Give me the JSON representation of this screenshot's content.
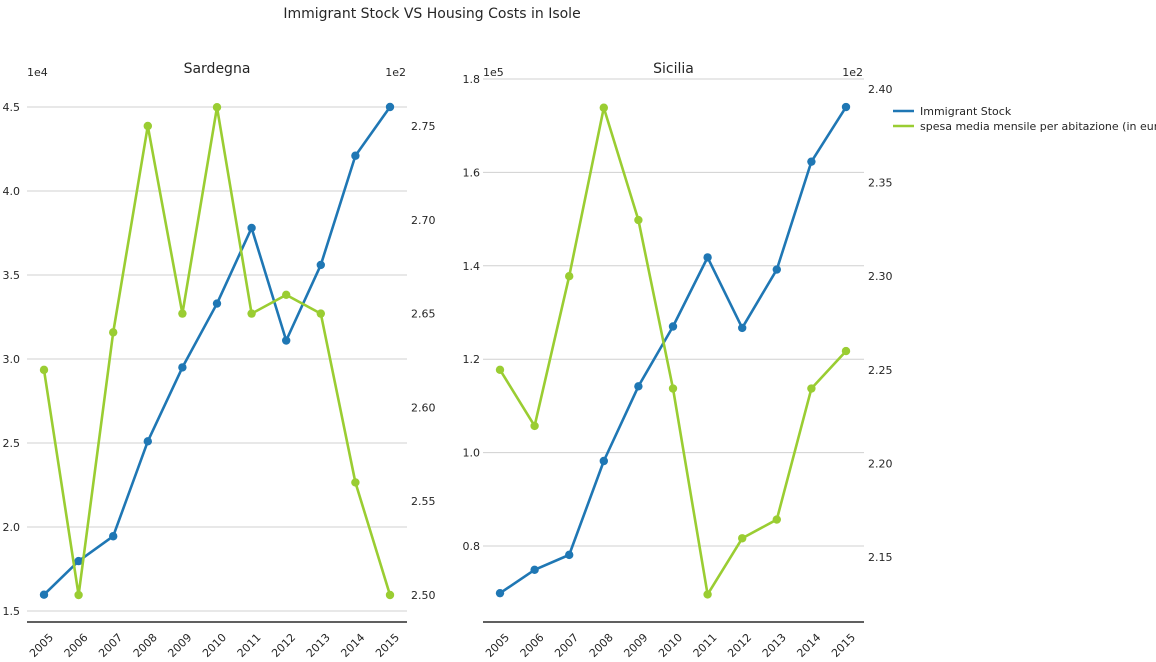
{
  "suptitle": "Immigrant Stock VS Housing Costs in Isole",
  "colors": {
    "immigrant": "#1f77b4",
    "spesa": "#9acd32",
    "grid": "#d0d0d0",
    "axis": "#000000"
  },
  "legend": {
    "placement": "upper-right, outside",
    "entries": [
      "Immigrant Stock",
      "spesa media mensile per abitazione (in euro)"
    ]
  },
  "chart_data": [
    {
      "type": "line",
      "title": "Sardegna",
      "categories": [
        "2005",
        "2006",
        "2007",
        "2008",
        "2009",
        "2010",
        "2011",
        "2012",
        "2013",
        "2014",
        "2015"
      ],
      "series": [
        {
          "name": "Immigrant Stock",
          "axis": "left",
          "values": [
            15970,
            17970,
            19450,
            25100,
            29500,
            33300,
            37800,
            31100,
            35600,
            42100,
            45000
          ]
        },
        {
          "name": "spesa media mensile per abitazione (in euro)",
          "axis": "right",
          "values": [
            262,
            250,
            264,
            275,
            265,
            276,
            265,
            266,
            265,
            256,
            250
          ]
        }
      ],
      "left_axis": {
        "ylim": [
          14400,
          46400
        ],
        "ticks": [
          15000,
          20000,
          25000,
          30000,
          35000,
          40000,
          45000
        ],
        "tick_labels": [
          "1.5",
          "2.0",
          "2.5",
          "3.0",
          "3.5",
          "4.0",
          "4.5"
        ],
        "offset_label": "1e4"
      },
      "right_axis": {
        "ylim": [
          248.5,
          279.0
        ],
        "ticks": [
          250,
          255,
          260,
          265,
          270,
          275
        ],
        "tick_labels": [
          "2.50",
          "2.55",
          "2.60",
          "2.65",
          "2.70",
          "2.75"
        ],
        "offset_label": "1e2"
      },
      "grid": true
    },
    {
      "type": "line",
      "title": "Sicilia",
      "categories": [
        "2005",
        "2006",
        "2007",
        "2008",
        "2009",
        "2010",
        "2011",
        "2012",
        "2013",
        "2014",
        "2015"
      ],
      "series": [
        {
          "name": "Immigrant Stock",
          "axis": "left",
          "values": [
            69900,
            74900,
            78100,
            98200,
            114200,
            127000,
            141800,
            126700,
            139200,
            162300,
            174000
          ]
        },
        {
          "name": "spesa media mensile per abitazione (in euro)",
          "axis": "right",
          "values": [
            225,
            222,
            230,
            239,
            233,
            224,
            213,
            216,
            217,
            224,
            226
          ]
        }
      ],
      "left_axis": {
        "ylim": [
          62000,
          180000
        ],
        "ticks": [
          80000,
          100000,
          120000,
          140000,
          160000,
          180000
        ],
        "tick_labels": [
          "0.8",
          "1.0",
          "1.2",
          "1.4",
          "1.6",
          "1.8"
        ],
        "offset_label": "1e5"
      },
      "right_axis": {
        "ylim": [
          211.5,
          240.6
        ],
        "ticks": [
          215,
          220,
          225,
          230,
          235,
          240
        ],
        "tick_labels": [
          "2.15",
          "2.20",
          "2.25",
          "2.30",
          "2.35",
          "2.40"
        ],
        "offset_label": "1e2"
      },
      "grid": true
    }
  ]
}
